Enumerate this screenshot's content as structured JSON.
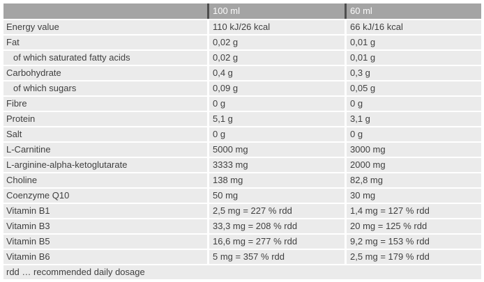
{
  "table": {
    "columns": [
      "100 ml",
      "60 ml"
    ],
    "rows": [
      {
        "label": "Energy value",
        "indent": false,
        "values": [
          "110 kJ/26 kcal",
          "66 kJ/16 kcal"
        ]
      },
      {
        "label": "Fat",
        "indent": false,
        "values": [
          "0,02 g",
          "0,01 g"
        ]
      },
      {
        "label": "of which saturated fatty acids",
        "indent": true,
        "values": [
          "0,02 g",
          "0,01 g"
        ]
      },
      {
        "label": "Carbohydrate",
        "indent": false,
        "values": [
          "0,4 g",
          "0,3 g"
        ]
      },
      {
        "label": "of which sugars",
        "indent": true,
        "values": [
          "0,09 g",
          "0,05 g"
        ]
      },
      {
        "label": "Fibre",
        "indent": false,
        "values": [
          "0 g",
          "0 g"
        ]
      },
      {
        "label": "Protein",
        "indent": false,
        "values": [
          "5,1 g",
          "3,1 g"
        ]
      },
      {
        "label": "Salt",
        "indent": false,
        "values": [
          "0 g",
          "0 g"
        ]
      },
      {
        "label": "L-Carnitine",
        "indent": false,
        "values": [
          "5000 mg",
          "3000 mg"
        ]
      },
      {
        "label": "L-arginine-alpha-ketoglutarate",
        "indent": false,
        "values": [
          "3333 mg",
          "2000 mg"
        ]
      },
      {
        "label": "Choline",
        "indent": false,
        "values": [
          "138 mg",
          "82,8 mg"
        ]
      },
      {
        "label": "Coenzyme Q10",
        "indent": false,
        "values": [
          "50 mg",
          "30 mg"
        ]
      },
      {
        "label": "Vitamin B1",
        "indent": false,
        "values": [
          "2,5 mg = 227 % rdd",
          "1,4 mg = 127 % rdd"
        ]
      },
      {
        "label": "Vitamin B3",
        "indent": false,
        "values": [
          "33,3 mg = 208 % rdd",
          "20 mg = 125 % rdd"
        ]
      },
      {
        "label": "Vitamin B5",
        "indent": false,
        "values": [
          "16,6 mg = 277 % rdd",
          "9,2 mg = 153 % rdd"
        ]
      },
      {
        "label": "Vitamin B6",
        "indent": false,
        "values": [
          "5 mg = 357 % rdd",
          "2,5 mg = 179 % rdd"
        ]
      }
    ],
    "footnote": "rdd … recommended daily dosage"
  },
  "colors": {
    "header_bg": "#a4a4a4",
    "header_text": "#fafafa",
    "header_divider": "#4e4e4e",
    "row_bg": "#ebebeb",
    "body_text": "#3f3f3f",
    "gap": "#ffffff"
  }
}
